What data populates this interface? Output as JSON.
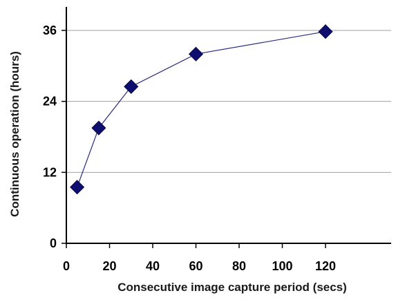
{
  "chart_data": {
    "type": "scatter",
    "title": "",
    "xlabel": "Consecutive image capture period (secs)",
    "ylabel": "Continuous operation (hours)",
    "xlim": [
      0,
      135
    ],
    "ylim": [
      0,
      36
    ],
    "x_ticks": [
      0,
      20,
      40,
      60,
      80,
      100,
      120
    ],
    "y_ticks": [
      0,
      12,
      24,
      36
    ],
    "grid": "horizontal",
    "legend": "none",
    "colors": {
      "marker": "#0e0e6e",
      "line": "#2a2a80",
      "grid": "#a0a0a0",
      "axis": "#000000"
    },
    "series": [
      {
        "marker": "diamond",
        "connected": true,
        "points": [
          {
            "x": 5,
            "y": 9.5
          },
          {
            "x": 15,
            "y": 19.5
          },
          {
            "x": 30,
            "y": 26.5
          },
          {
            "x": 60,
            "y": 32
          },
          {
            "x": 120,
            "y": 35.8
          }
        ]
      }
    ]
  }
}
